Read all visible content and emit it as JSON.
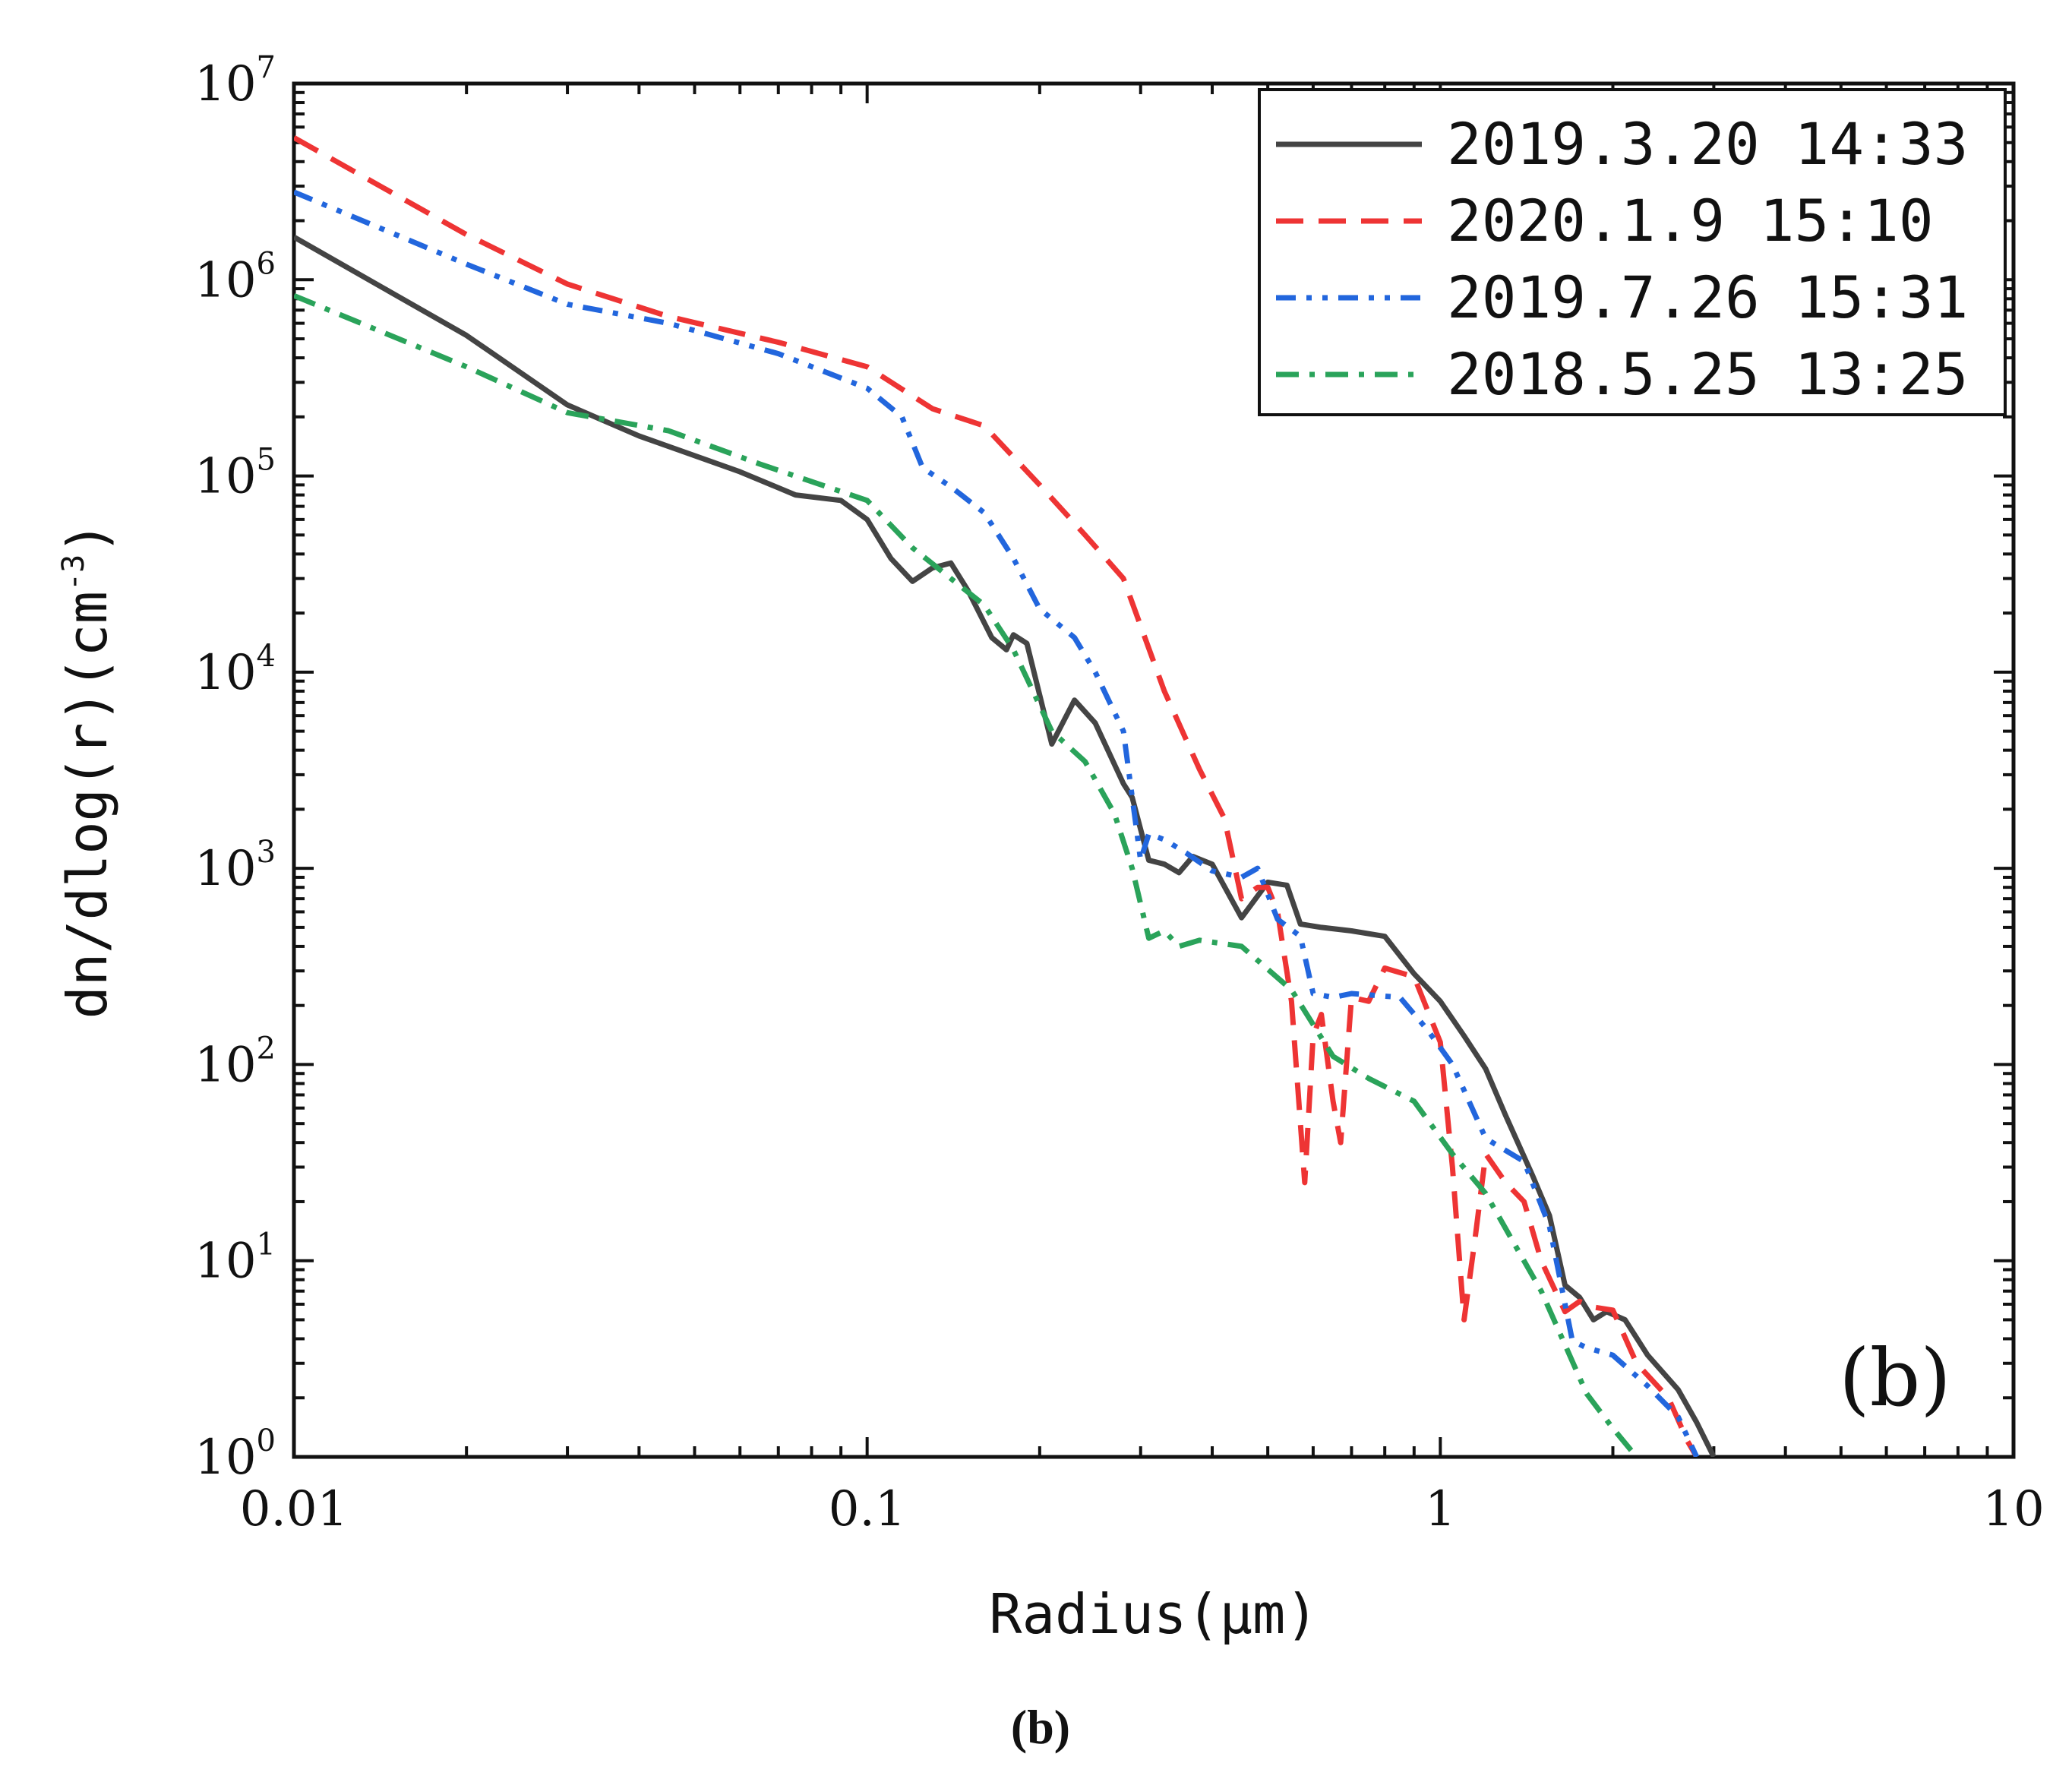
{
  "chart_data": {
    "type": "line",
    "xscale": "log",
    "yscale": "log",
    "xlim": [
      0.01,
      10
    ],
    "ylim": [
      1,
      10000000
    ],
    "xlabel": "Radius(μm)",
    "ylabel_base": "dn/dlog(r)(cm",
    "ylabel_sup": "-3",
    "ylabel_close": ")",
    "x_ticks": [
      {
        "value": 0.01,
        "label": "0.01"
      },
      {
        "value": 0.1,
        "label": "0.1"
      },
      {
        "value": 1,
        "label": "1"
      },
      {
        "value": 10,
        "label": "10"
      }
    ],
    "y_ticks": [
      {
        "value": 1,
        "base": "10",
        "exp": "0"
      },
      {
        "value": 10,
        "base": "10",
        "exp": "1"
      },
      {
        "value": 100,
        "base": "10",
        "exp": "2"
      },
      {
        "value": 1000,
        "base": "10",
        "exp": "3"
      },
      {
        "value": 10000,
        "base": "10",
        "exp": "4"
      },
      {
        "value": 100000,
        "base": "10",
        "exp": "5"
      },
      {
        "value": 1000000,
        "base": "10",
        "exp": "6"
      },
      {
        "value": 10000000,
        "base": "10",
        "exp": "7"
      }
    ],
    "panel_label": "(b)",
    "legend_position": "top-right",
    "series": [
      {
        "name": "2019.3.20 14:33",
        "color": "#444444",
        "dash": "solid",
        "points": [
          [
            0.01,
            1650000
          ],
          [
            0.02,
            520000
          ],
          [
            0.03,
            230000
          ],
          [
            0.04,
            160000
          ],
          [
            0.06,
            105000
          ],
          [
            0.075,
            80000
          ],
          [
            0.09,
            75000
          ],
          [
            0.1,
            60000
          ],
          [
            0.11,
            38000
          ],
          [
            0.12,
            29000
          ],
          [
            0.13,
            34000
          ],
          [
            0.14,
            36000
          ],
          [
            0.15,
            26000
          ],
          [
            0.165,
            15000
          ],
          [
            0.175,
            13000
          ],
          [
            0.18,
            15500
          ],
          [
            0.19,
            14000
          ],
          [
            0.21,
            4300
          ],
          [
            0.23,
            7200
          ],
          [
            0.25,
            5500
          ],
          [
            0.28,
            2700
          ],
          [
            0.29,
            2300
          ],
          [
            0.31,
            1100
          ],
          [
            0.33,
            1050
          ],
          [
            0.35,
            950
          ],
          [
            0.37,
            1150
          ],
          [
            0.4,
            1050
          ],
          [
            0.45,
            560
          ],
          [
            0.5,
            850
          ],
          [
            0.54,
            820
          ],
          [
            0.57,
            520
          ],
          [
            0.62,
            500
          ],
          [
            0.7,
            480
          ],
          [
            0.8,
            450
          ],
          [
            0.9,
            290
          ],
          [
            1.0,
            210
          ],
          [
            1.1,
            140
          ],
          [
            1.2,
            95
          ],
          [
            1.3,
            55
          ],
          [
            1.45,
            27
          ],
          [
            1.55,
            17
          ],
          [
            1.65,
            7.5
          ],
          [
            1.75,
            6.5
          ],
          [
            1.85,
            5.0
          ],
          [
            1.95,
            5.5
          ],
          [
            2.1,
            5.0
          ],
          [
            2.3,
            3.3
          ],
          [
            2.6,
            2.2
          ],
          [
            2.8,
            1.5
          ],
          [
            3.0,
            1.0
          ]
        ]
      },
      {
        "name": "2020.1.9   15:10",
        "color": "#ee3434",
        "dash": "dashed",
        "points": [
          [
            0.01,
            5300000
          ],
          [
            0.02,
            1700000
          ],
          [
            0.03,
            950000
          ],
          [
            0.045,
            650000
          ],
          [
            0.07,
            480000
          ],
          [
            0.1,
            360000
          ],
          [
            0.13,
            220000
          ],
          [
            0.16,
            180000
          ],
          [
            0.2,
            90000
          ],
          [
            0.24,
            50000
          ],
          [
            0.28,
            30000
          ],
          [
            0.33,
            8000
          ],
          [
            0.38,
            3200
          ],
          [
            0.42,
            1800
          ],
          [
            0.45,
            700
          ],
          [
            0.48,
            800
          ],
          [
            0.5,
            800
          ],
          [
            0.52,
            600
          ],
          [
            0.55,
            210
          ],
          [
            0.58,
            25
          ],
          [
            0.6,
            140
          ],
          [
            0.62,
            180
          ],
          [
            0.65,
            65
          ],
          [
            0.67,
            40
          ],
          [
            0.7,
            220
          ],
          [
            0.75,
            210
          ],
          [
            0.8,
            310
          ],
          [
            0.9,
            280
          ],
          [
            1.0,
            130
          ],
          [
            1.05,
            30
          ],
          [
            1.1,
            5
          ],
          [
            1.15,
            13
          ],
          [
            1.2,
            35
          ],
          [
            1.3,
            25
          ],
          [
            1.4,
            20
          ],
          [
            1.5,
            10
          ],
          [
            1.65,
            5.5
          ],
          [
            1.75,
            6.2
          ],
          [
            1.85,
            5.8
          ],
          [
            2.0,
            5.6
          ],
          [
            2.2,
            3.0
          ],
          [
            2.5,
            2.0
          ],
          [
            2.7,
            1.2
          ],
          [
            2.8,
            1.0
          ]
        ]
      },
      {
        "name": "2019.7.26 15:31",
        "color": "#2266dd",
        "dash": "dash-dot-dot",
        "points": [
          [
            0.01,
            2800000
          ],
          [
            0.02,
            1200000
          ],
          [
            0.03,
            750000
          ],
          [
            0.045,
            600000
          ],
          [
            0.07,
            420000
          ],
          [
            0.1,
            280000
          ],
          [
            0.115,
            200000
          ],
          [
            0.125,
            110000
          ],
          [
            0.14,
            88000
          ],
          [
            0.16,
            65000
          ],
          [
            0.18,
            38000
          ],
          [
            0.2,
            21000
          ],
          [
            0.23,
            15000
          ],
          [
            0.25,
            10000
          ],
          [
            0.28,
            5000
          ],
          [
            0.3,
            1100
          ],
          [
            0.31,
            1500
          ],
          [
            0.33,
            1400
          ],
          [
            0.36,
            1200
          ],
          [
            0.4,
            970
          ],
          [
            0.45,
            900
          ],
          [
            0.48,
            1000
          ],
          [
            0.52,
            550
          ],
          [
            0.57,
            450
          ],
          [
            0.6,
            230
          ],
          [
            0.65,
            220
          ],
          [
            0.7,
            230
          ],
          [
            0.85,
            220
          ],
          [
            0.95,
            150
          ],
          [
            1.05,
            100
          ],
          [
            1.2,
            42
          ],
          [
            1.4,
            32
          ],
          [
            1.55,
            15
          ],
          [
            1.7,
            3.9
          ],
          [
            1.8,
            3.6
          ],
          [
            2.0,
            3.3
          ],
          [
            2.3,
            2.3
          ],
          [
            2.6,
            1.6
          ],
          [
            2.8,
            1.0
          ]
        ]
      },
      {
        "name": "2018.5.25 13:25",
        "color": "#2aa35a",
        "dash": "dash-dot",
        "points": [
          [
            0.01,
            830000
          ],
          [
            0.02,
            360000
          ],
          [
            0.03,
            210000
          ],
          [
            0.045,
            170000
          ],
          [
            0.065,
            115000
          ],
          [
            0.1,
            75000
          ],
          [
            0.12,
            43000
          ],
          [
            0.14,
            30000
          ],
          [
            0.16,
            22000
          ],
          [
            0.18,
            13000
          ],
          [
            0.21,
            5000
          ],
          [
            0.24,
            3500
          ],
          [
            0.27,
            1900
          ],
          [
            0.29,
            1000
          ],
          [
            0.31,
            440
          ],
          [
            0.33,
            480
          ],
          [
            0.35,
            400
          ],
          [
            0.38,
            430
          ],
          [
            0.45,
            400
          ],
          [
            0.55,
            240
          ],
          [
            0.65,
            110
          ],
          [
            0.75,
            85
          ],
          [
            0.9,
            65
          ],
          [
            1.05,
            35
          ],
          [
            1.2,
            22
          ],
          [
            1.5,
            7.0
          ],
          [
            1.8,
            2.1
          ],
          [
            2.0,
            1.4
          ],
          [
            2.2,
            1.0
          ]
        ]
      }
    ]
  },
  "caption": "(b)"
}
